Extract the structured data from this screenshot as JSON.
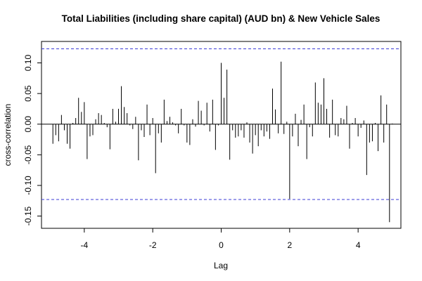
{
  "chart_data": {
    "type": "bar",
    "title": "Total Liabilities (including share capital) (AUD bn)  & New Vehicle Sales",
    "xlabel": "Lag",
    "ylabel": "cross-correlation",
    "xlim": [
      -5.25,
      5.25
    ],
    "ylim": [
      -0.17,
      0.135
    ],
    "xticks": [
      -4,
      -2,
      0,
      2,
      4
    ],
    "yticks": [
      -0.15,
      -0.1,
      -0.05,
      0.0,
      0.05,
      0.1
    ],
    "ytick_labels": [
      "-0.15",
      "-0.10",
      "-0.05",
      "0.00",
      "0.05",
      "0.10"
    ],
    "ci_bounds": [
      0.123,
      -0.123
    ],
    "ci_color": "#3b3bd6",
    "grid": false,
    "lags": [
      -4.917,
      -4.833,
      -4.75,
      -4.667,
      -4.583,
      -4.5,
      -4.417,
      -4.333,
      -4.25,
      -4.167,
      -4.083,
      -4.0,
      -3.917,
      -3.833,
      -3.75,
      -3.667,
      -3.583,
      -3.5,
      -3.417,
      -3.333,
      -3.25,
      -3.167,
      -3.083,
      -3.0,
      -2.917,
      -2.833,
      -2.75,
      -2.667,
      -2.583,
      -2.5,
      -2.417,
      -2.333,
      -2.25,
      -2.167,
      -2.083,
      -2.0,
      -1.917,
      -1.833,
      -1.75,
      -1.667,
      -1.583,
      -1.5,
      -1.417,
      -1.333,
      -1.25,
      -1.167,
      -1.083,
      -1.0,
      -0.917,
      -0.833,
      -0.75,
      -0.667,
      -0.583,
      -0.5,
      -0.417,
      -0.333,
      -0.25,
      -0.167,
      -0.083,
      0.0,
      0.083,
      0.167,
      0.25,
      0.333,
      0.417,
      0.5,
      0.583,
      0.667,
      0.75,
      0.833,
      0.917,
      1.0,
      1.083,
      1.167,
      1.25,
      1.333,
      1.417,
      1.5,
      1.583,
      1.667,
      1.75,
      1.833,
      1.917,
      2.0,
      2.083,
      2.167,
      2.25,
      2.333,
      2.417,
      2.5,
      2.583,
      2.667,
      2.75,
      2.833,
      2.917,
      3.0,
      3.083,
      3.167,
      3.25,
      3.333,
      3.417,
      3.5,
      3.583,
      3.667,
      3.75,
      3.833,
      3.917,
      4.0,
      4.083,
      4.167,
      4.25,
      4.333,
      4.417,
      4.5,
      4.583,
      4.667,
      4.75,
      4.833,
      4.917,
      5.0
    ],
    "values": [
      -0.032,
      -0.018,
      -0.028,
      0.015,
      -0.01,
      -0.032,
      -0.04,
      0.002,
      0.01,
      0.043,
      0.02,
      0.036,
      -0.057,
      -0.02,
      -0.018,
      0.008,
      0.018,
      0.015,
      0.002,
      -0.005,
      -0.041,
      0.025,
      0.004,
      0.025,
      0.062,
      0.028,
      0.018,
      -0.002,
      -0.008,
      0.012,
      -0.059,
      -0.01,
      -0.021,
      0.032,
      -0.018,
      0.01,
      -0.08,
      -0.015,
      -0.03,
      0.04,
      0.005,
      0.012,
      0.003,
      -0.002,
      -0.015,
      0.025,
      -0.002,
      -0.03,
      -0.034,
      0.008,
      -0.004,
      0.038,
      0.022,
      -0.002,
      0.035,
      -0.012,
      0.04,
      -0.042,
      -0.002,
      0.1,
      0.043,
      0.089,
      -0.058,
      -0.01,
      -0.022,
      -0.02,
      -0.01,
      -0.022,
      0.003,
      -0.03,
      -0.048,
      -0.018,
      -0.036,
      -0.01,
      -0.02,
      -0.012,
      -0.024,
      0.058,
      0.024,
      -0.015,
      0.102,
      -0.016,
      0.004,
      -0.122,
      -0.02,
      0.017,
      -0.036,
      0.007,
      0.032,
      -0.057,
      -0.005,
      -0.02,
      0.068,
      0.035,
      0.032,
      0.075,
      0.025,
      -0.022,
      0.04,
      -0.018,
      -0.02,
      0.01,
      0.008,
      0.03,
      -0.04,
      0.002,
      0.01,
      -0.02,
      -0.006,
      0.006,
      -0.083,
      -0.03,
      -0.028,
      0.002,
      -0.044,
      0.047,
      -0.03,
      0.032,
      -0.16,
      0.001
    ]
  }
}
